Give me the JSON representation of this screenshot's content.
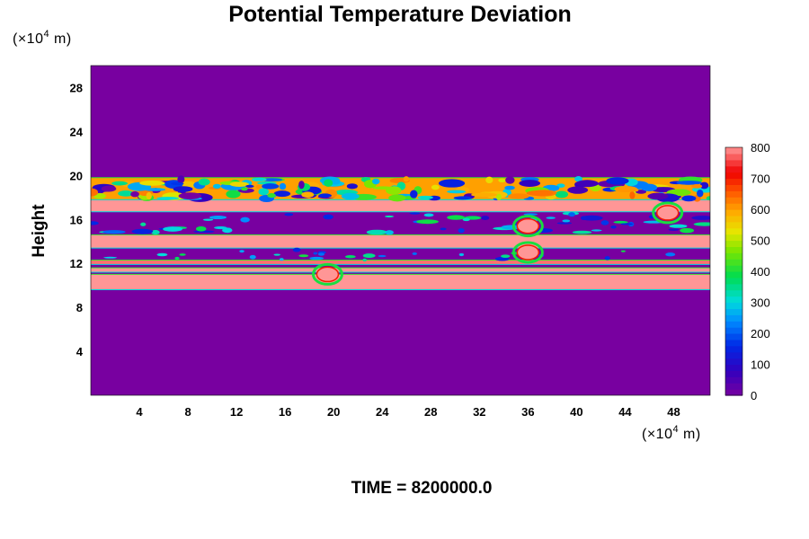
{
  "chart_data": {
    "type": "heatmap",
    "title": "Potential Temperature Deviation",
    "xlabel": "",
    "ylabel": "Height",
    "x_unit": {
      "prefix": "(×10",
      "exp": "4",
      "suffix": " m)"
    },
    "y_unit": {
      "prefix": "(×10",
      "exp": "4",
      "suffix": " m)"
    },
    "xlim": [
      0,
      51
    ],
    "ylim": [
      0,
      30
    ],
    "x_ticks": [
      "4",
      "8",
      "12",
      "16",
      "20",
      "24",
      "28",
      "32",
      "36",
      "40",
      "44",
      "48"
    ],
    "x_tick_values": [
      4,
      8,
      12,
      16,
      20,
      24,
      28,
      32,
      36,
      40,
      44,
      48
    ],
    "y_ticks": [
      "4",
      "8",
      "12",
      "16",
      "20",
      "24",
      "28"
    ],
    "y_tick_values": [
      4,
      8,
      12,
      16,
      20,
      24,
      28
    ],
    "colorbar": {
      "min": 0,
      "max": 800,
      "ticks": [
        "0",
        "100",
        "200",
        "300",
        "400",
        "500",
        "600",
        "700",
        "800"
      ],
      "tick_values": [
        0,
        100,
        200,
        300,
        400,
        500,
        600,
        700,
        800
      ]
    },
    "background_value": 0,
    "layers": [
      {
        "y0": 9.6,
        "y1": 11.0,
        "value": 800
      },
      {
        "y0": 11.2,
        "y1": 11.6,
        "value": 800
      },
      {
        "y0": 11.9,
        "y1": 12.3,
        "value": 780
      },
      {
        "y0": 13.4,
        "y1": 14.6,
        "value": 800
      },
      {
        "y0": 16.7,
        "y1": 17.8,
        "value": 800
      },
      {
        "y0": 17.8,
        "y1": 19.8,
        "value": 600
      }
    ],
    "features": [
      {
        "x": 36.0,
        "y": 15.4,
        "value": 800
      },
      {
        "x": 36.0,
        "y": 13.0,
        "value": 800
      },
      {
        "x": 19.5,
        "y": 11.0,
        "value": 800
      },
      {
        "x": 47.5,
        "y": 16.6,
        "value": 800
      }
    ],
    "time_label": "TIME = 8200000.0"
  }
}
